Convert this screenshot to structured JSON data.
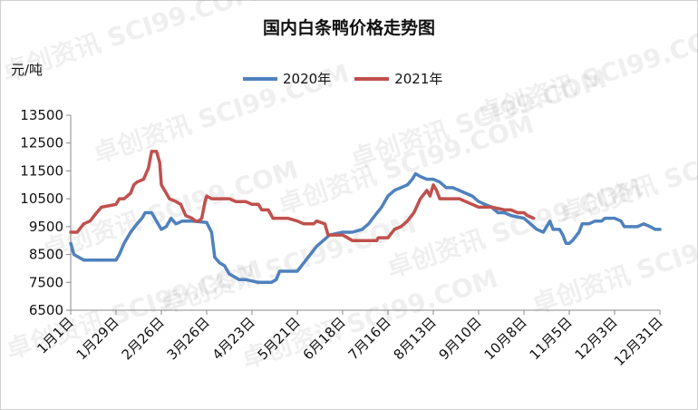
{
  "watermark": "卓创资讯 SCI99.COM",
  "chart_data": {
    "type": "line",
    "title": "国内白条鸭价格走势图",
    "ylabel": "元/吨",
    "xlabel": "",
    "ylim": [
      6500,
      13500
    ],
    "yticks": [
      6500,
      7500,
      8500,
      9500,
      10500,
      11500,
      12500,
      13500
    ],
    "x_tick_labels": [
      "1月1日",
      "1月29日",
      "2月26日",
      "3月26日",
      "4月23日",
      "5月21日",
      "6月18日",
      "7月16日",
      "8月13日",
      "9月10日",
      "10月8日",
      "11月5日",
      "12月3日",
      "12月31日"
    ],
    "x_tick_days": [
      1,
      29,
      57,
      85,
      113,
      141,
      169,
      197,
      225,
      253,
      281,
      309,
      337,
      365
    ],
    "xlim": [
      1,
      365
    ],
    "grid": false,
    "legend": "top",
    "series": [
      {
        "name": "2020年",
        "color": "#4F81BD",
        "points": [
          [
            1,
            8900
          ],
          [
            3,
            8500
          ],
          [
            6,
            8400
          ],
          [
            9,
            8300
          ],
          [
            12,
            8300
          ],
          [
            20,
            8300
          ],
          [
            29,
            8300
          ],
          [
            31,
            8500
          ],
          [
            34,
            8900
          ],
          [
            38,
            9300
          ],
          [
            42,
            9600
          ],
          [
            45,
            9800
          ],
          [
            47,
            10000
          ],
          [
            51,
            10000
          ],
          [
            54,
            9700
          ],
          [
            57,
            9400
          ],
          [
            60,
            9500
          ],
          [
            63,
            9800
          ],
          [
            66,
            9600
          ],
          [
            70,
            9700
          ],
          [
            76,
            9700
          ],
          [
            85,
            9650
          ],
          [
            88,
            9300
          ],
          [
            90,
            8400
          ],
          [
            93,
            8200
          ],
          [
            96,
            8100
          ],
          [
            99,
            7800
          ],
          [
            102,
            7700
          ],
          [
            105,
            7600
          ],
          [
            109,
            7600
          ],
          [
            113,
            7550
          ],
          [
            117,
            7500
          ],
          [
            121,
            7500
          ],
          [
            125,
            7500
          ],
          [
            128,
            7600
          ],
          [
            130,
            7900
          ],
          [
            135,
            7900
          ],
          [
            141,
            7900
          ],
          [
            145,
            8200
          ],
          [
            149,
            8500
          ],
          [
            153,
            8800
          ],
          [
            157,
            9000
          ],
          [
            161,
            9200
          ],
          [
            169,
            9300
          ],
          [
            175,
            9300
          ],
          [
            181,
            9400
          ],
          [
            185,
            9600
          ],
          [
            189,
            9900
          ],
          [
            193,
            10200
          ],
          [
            197,
            10600
          ],
          [
            201,
            10800
          ],
          [
            205,
            10900
          ],
          [
            209,
            11000
          ],
          [
            212,
            11200
          ],
          [
            214,
            11400
          ],
          [
            217,
            11300
          ],
          [
            221,
            11200
          ],
          [
            225,
            11200
          ],
          [
            229,
            11100
          ],
          [
            233,
            10900
          ],
          [
            237,
            10900
          ],
          [
            241,
            10800
          ],
          [
            245,
            10700
          ],
          [
            249,
            10600
          ],
          [
            253,
            10400
          ],
          [
            257,
            10300
          ],
          [
            261,
            10200
          ],
          [
            265,
            10000
          ],
          [
            269,
            10000
          ],
          [
            273,
            9900
          ],
          [
            281,
            9800
          ],
          [
            285,
            9600
          ],
          [
            289,
            9400
          ],
          [
            293,
            9300
          ],
          [
            297,
            9700
          ],
          [
            299,
            9400
          ],
          [
            303,
            9400
          ],
          [
            305,
            9200
          ],
          [
            307,
            8900
          ],
          [
            309,
            8900
          ],
          [
            311,
            9000
          ],
          [
            315,
            9300
          ],
          [
            317,
            9600
          ],
          [
            321,
            9600
          ],
          [
            325,
            9700
          ],
          [
            329,
            9700
          ],
          [
            331,
            9800
          ],
          [
            335,
            9800
          ],
          [
            337,
            9800
          ],
          [
            341,
            9700
          ],
          [
            343,
            9500
          ],
          [
            347,
            9500
          ],
          [
            351,
            9500
          ],
          [
            355,
            9600
          ],
          [
            359,
            9500
          ],
          [
            362,
            9400
          ],
          [
            365,
            9400
          ]
        ]
      },
      {
        "name": "2021年",
        "color": "#C0504D",
        "points": [
          [
            1,
            9300
          ],
          [
            5,
            9300
          ],
          [
            9,
            9600
          ],
          [
            13,
            9700
          ],
          [
            17,
            10000
          ],
          [
            20,
            10200
          ],
          [
            29,
            10300
          ],
          [
            31,
            10500
          ],
          [
            34,
            10500
          ],
          [
            38,
            10700
          ],
          [
            40,
            11000
          ],
          [
            42,
            11100
          ],
          [
            46,
            11200
          ],
          [
            49,
            11600
          ],
          [
            51,
            12200
          ],
          [
            54,
            12200
          ],
          [
            56,
            11800
          ],
          [
            57,
            11000
          ],
          [
            59,
            10800
          ],
          [
            62,
            10500
          ],
          [
            66,
            10400
          ],
          [
            69,
            10300
          ],
          [
            72,
            9900
          ],
          [
            76,
            9800
          ],
          [
            78,
            9700
          ],
          [
            80,
            9700
          ],
          [
            82,
            9800
          ],
          [
            84,
            10400
          ],
          [
            85,
            10600
          ],
          [
            88,
            10500
          ],
          [
            93,
            10500
          ],
          [
            99,
            10500
          ],
          [
            103,
            10400
          ],
          [
            109,
            10400
          ],
          [
            113,
            10300
          ],
          [
            117,
            10300
          ],
          [
            119,
            10100
          ],
          [
            123,
            10100
          ],
          [
            126,
            9800
          ],
          [
            131,
            9800
          ],
          [
            135,
            9800
          ],
          [
            141,
            9700
          ],
          [
            145,
            9600
          ],
          [
            151,
            9600
          ],
          [
            153,
            9700
          ],
          [
            158,
            9600
          ],
          [
            160,
            9200
          ],
          [
            165,
            9200
          ],
          [
            169,
            9200
          ],
          [
            175,
            9000
          ],
          [
            183,
            9000
          ],
          [
            190,
            9000
          ],
          [
            191,
            9100
          ],
          [
            197,
            9100
          ],
          [
            201,
            9400
          ],
          [
            205,
            9500
          ],
          [
            209,
            9700
          ],
          [
            213,
            10000
          ],
          [
            217,
            10500
          ],
          [
            221,
            10800
          ],
          [
            223,
            10600
          ],
          [
            225,
            11000
          ],
          [
            227,
            10800
          ],
          [
            229,
            10500
          ],
          [
            233,
            10500
          ],
          [
            241,
            10500
          ],
          [
            249,
            10300
          ],
          [
            253,
            10200
          ],
          [
            261,
            10200
          ],
          [
            269,
            10100
          ],
          [
            273,
            10100
          ],
          [
            277,
            10000
          ],
          [
            281,
            10000
          ],
          [
            283,
            9900
          ],
          [
            287,
            9800
          ]
        ]
      }
    ]
  }
}
